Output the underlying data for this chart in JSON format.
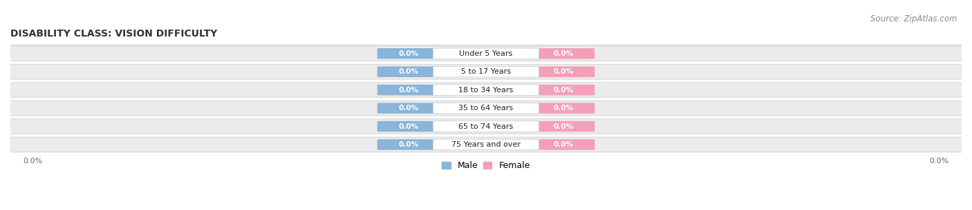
{
  "title": "DISABILITY CLASS: VISION DIFFICULTY",
  "source": "Source: ZipAtlas.com",
  "categories": [
    "Under 5 Years",
    "5 to 17 Years",
    "18 to 34 Years",
    "35 to 64 Years",
    "65 to 74 Years",
    "75 Years and over"
  ],
  "male_values": [
    0.0,
    0.0,
    0.0,
    0.0,
    0.0,
    0.0
  ],
  "female_values": [
    0.0,
    0.0,
    0.0,
    0.0,
    0.0,
    0.0
  ],
  "male_color": "#8ab4d8",
  "female_color": "#f2a0b8",
  "row_bg_color": "#ebebeb",
  "row_border_color": "#d8d8d8",
  "title_fontsize": 10,
  "source_fontsize": 8.5,
  "cat_fontsize": 8,
  "val_fontsize": 7.5,
  "legend_fontsize": 9,
  "xlim_left": -1.05,
  "xlim_right": 1.05,
  "figsize": [
    14.06,
    3.05
  ],
  "dpi": 100
}
